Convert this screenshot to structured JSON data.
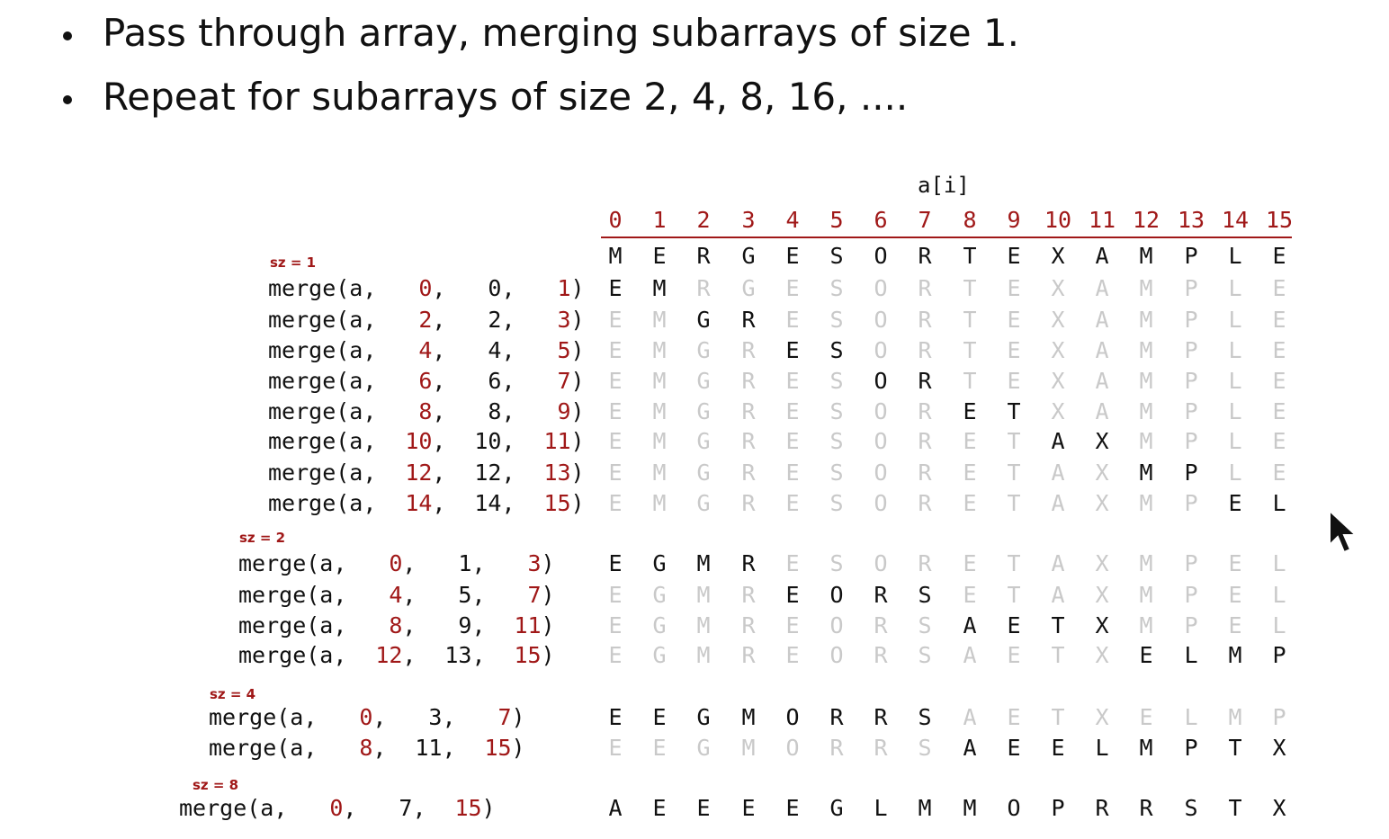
{
  "bullets": [
    "Pass through array, merging subarrays of size 1.",
    "Repeat for subarrays of size 2, 4, 8, 16, ...."
  ],
  "array_header": "a[i]",
  "indices": [
    "0",
    "1",
    "2",
    "3",
    "4",
    "5",
    "6",
    "7",
    "8",
    "9",
    "10",
    "11",
    "12",
    "13",
    "14",
    "15"
  ],
  "initial_row": [
    "M",
    "E",
    "R",
    "G",
    "E",
    "S",
    "O",
    "R",
    "T",
    "E",
    "X",
    "A",
    "M",
    "P",
    "L",
    "E"
  ],
  "groups": [
    {
      "label": "sz = 1",
      "rows": [
        {
          "lo": "0",
          "mid": "0",
          "hi": "1",
          "letters": [
            "E",
            "M",
            "R",
            "G",
            "E",
            "S",
            "O",
            "R",
            "T",
            "E",
            "X",
            "A",
            "M",
            "P",
            "L",
            "E"
          ]
        },
        {
          "lo": "2",
          "mid": "2",
          "hi": "3",
          "letters": [
            "E",
            "M",
            "G",
            "R",
            "E",
            "S",
            "O",
            "R",
            "T",
            "E",
            "X",
            "A",
            "M",
            "P",
            "L",
            "E"
          ]
        },
        {
          "lo": "4",
          "mid": "4",
          "hi": "5",
          "letters": [
            "E",
            "M",
            "G",
            "R",
            "E",
            "S",
            "O",
            "R",
            "T",
            "E",
            "X",
            "A",
            "M",
            "P",
            "L",
            "E"
          ]
        },
        {
          "lo": "6",
          "mid": "6",
          "hi": "7",
          "letters": [
            "E",
            "M",
            "G",
            "R",
            "E",
            "S",
            "O",
            "R",
            "T",
            "E",
            "X",
            "A",
            "M",
            "P",
            "L",
            "E"
          ]
        },
        {
          "lo": "8",
          "mid": "8",
          "hi": "9",
          "letters": [
            "E",
            "M",
            "G",
            "R",
            "E",
            "S",
            "O",
            "R",
            "E",
            "T",
            "X",
            "A",
            "M",
            "P",
            "L",
            "E"
          ]
        },
        {
          "lo": "10",
          "mid": "10",
          "hi": "11",
          "letters": [
            "E",
            "M",
            "G",
            "R",
            "E",
            "S",
            "O",
            "R",
            "E",
            "T",
            "A",
            "X",
            "M",
            "P",
            "L",
            "E"
          ]
        },
        {
          "lo": "12",
          "mid": "12",
          "hi": "13",
          "letters": [
            "E",
            "M",
            "G",
            "R",
            "E",
            "S",
            "O",
            "R",
            "E",
            "T",
            "A",
            "X",
            "M",
            "P",
            "L",
            "E"
          ]
        },
        {
          "lo": "14",
          "mid": "14",
          "hi": "15",
          "letters": [
            "E",
            "M",
            "G",
            "R",
            "E",
            "S",
            "O",
            "R",
            "E",
            "T",
            "A",
            "X",
            "M",
            "P",
            "E",
            "L"
          ]
        }
      ]
    },
    {
      "label": "sz = 2",
      "rows": [
        {
          "lo": "0",
          "mid": "1",
          "hi": "3",
          "letters": [
            "E",
            "G",
            "M",
            "R",
            "E",
            "S",
            "O",
            "R",
            "E",
            "T",
            "A",
            "X",
            "M",
            "P",
            "E",
            "L"
          ]
        },
        {
          "lo": "4",
          "mid": "5",
          "hi": "7",
          "letters": [
            "E",
            "G",
            "M",
            "R",
            "E",
            "O",
            "R",
            "S",
            "E",
            "T",
            "A",
            "X",
            "M",
            "P",
            "E",
            "L"
          ]
        },
        {
          "lo": "8",
          "mid": "9",
          "hi": "11",
          "letters": [
            "E",
            "G",
            "M",
            "R",
            "E",
            "O",
            "R",
            "S",
            "A",
            "E",
            "T",
            "X",
            "M",
            "P",
            "E",
            "L"
          ]
        },
        {
          "lo": "12",
          "mid": "13",
          "hi": "15",
          "letters": [
            "E",
            "G",
            "M",
            "R",
            "E",
            "O",
            "R",
            "S",
            "A",
            "E",
            "T",
            "X",
            "E",
            "L",
            "M",
            "P"
          ]
        }
      ]
    },
    {
      "label": "sz = 4",
      "rows": [
        {
          "lo": "0",
          "mid": "3",
          "hi": "7",
          "letters": [
            "E",
            "E",
            "G",
            "M",
            "O",
            "R",
            "R",
            "S",
            "A",
            "E",
            "T",
            "X",
            "E",
            "L",
            "M",
            "P"
          ]
        },
        {
          "lo": "8",
          "mid": "11",
          "hi": "15",
          "letters": [
            "E",
            "E",
            "G",
            "M",
            "O",
            "R",
            "R",
            "S",
            "A",
            "E",
            "E",
            "L",
            "M",
            "P",
            "T",
            "X"
          ]
        }
      ]
    },
    {
      "label": "sz = 8",
      "rows": [
        {
          "lo": "0",
          "mid": "7",
          "hi": "15",
          "letters": [
            "A",
            "E",
            "E",
            "E",
            "E",
            "G",
            "L",
            "M",
            "M",
            "O",
            "P",
            "R",
            "R",
            "S",
            "T",
            "X"
          ]
        }
      ]
    }
  ],
  "colors": {
    "accent": "#a01818",
    "active": "#111111",
    "inactive": "#c9c9c9"
  },
  "icons": [
    "mouse-pointer-icon"
  ]
}
